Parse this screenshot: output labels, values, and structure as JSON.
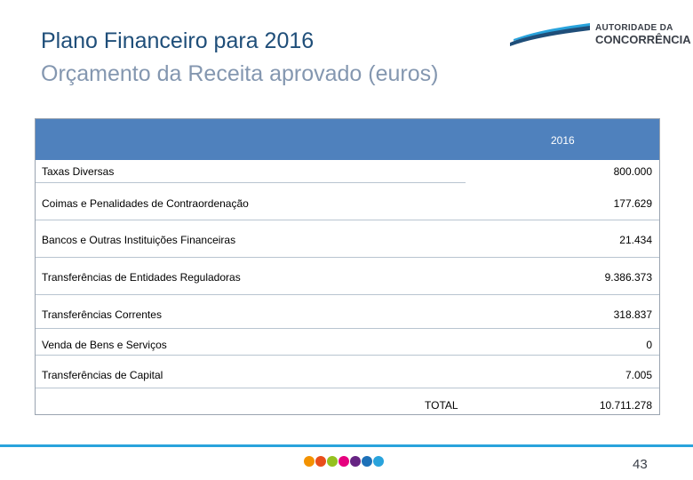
{
  "slide": {
    "title": "Plano Financeiro para 2016",
    "subtitle": "Orçamento da Receita aprovado (euros)",
    "page_number": "43"
  },
  "logo": {
    "line1": "AUTORIDADE DA",
    "line2": "CONCORRÊNCIA"
  },
  "table": {
    "year_header": "2016",
    "rows": [
      {
        "label": "Taxas Diversas",
        "value": "800.000"
      },
      {
        "label": "Coimas e Penalidades de Contraordenação",
        "value": "177.629"
      },
      {
        "label": "Bancos e Outras Instituições Financeiras",
        "value": "21.434"
      },
      {
        "label": "Transferências de Entidades Reguladoras",
        "value": "9.386.373"
      },
      {
        "label": "Transferências Correntes",
        "value": "318.837"
      },
      {
        "label": "Venda de Bens e Serviços",
        "value": "0"
      },
      {
        "label": "Transferências de Capital",
        "value": "7.005"
      }
    ],
    "total_label": "TOTAL",
    "total_value": "10.711.278"
  },
  "colors": {
    "header_bg": "#4f81bd",
    "title": "#1f4e79",
    "subtitle": "#8497b0",
    "accent_line": "#29a3dc",
    "dots": [
      "#f39200",
      "#e94e1b",
      "#95c11f",
      "#e6007e",
      "#662483",
      "#1d71b8",
      "#29a3dc"
    ]
  }
}
